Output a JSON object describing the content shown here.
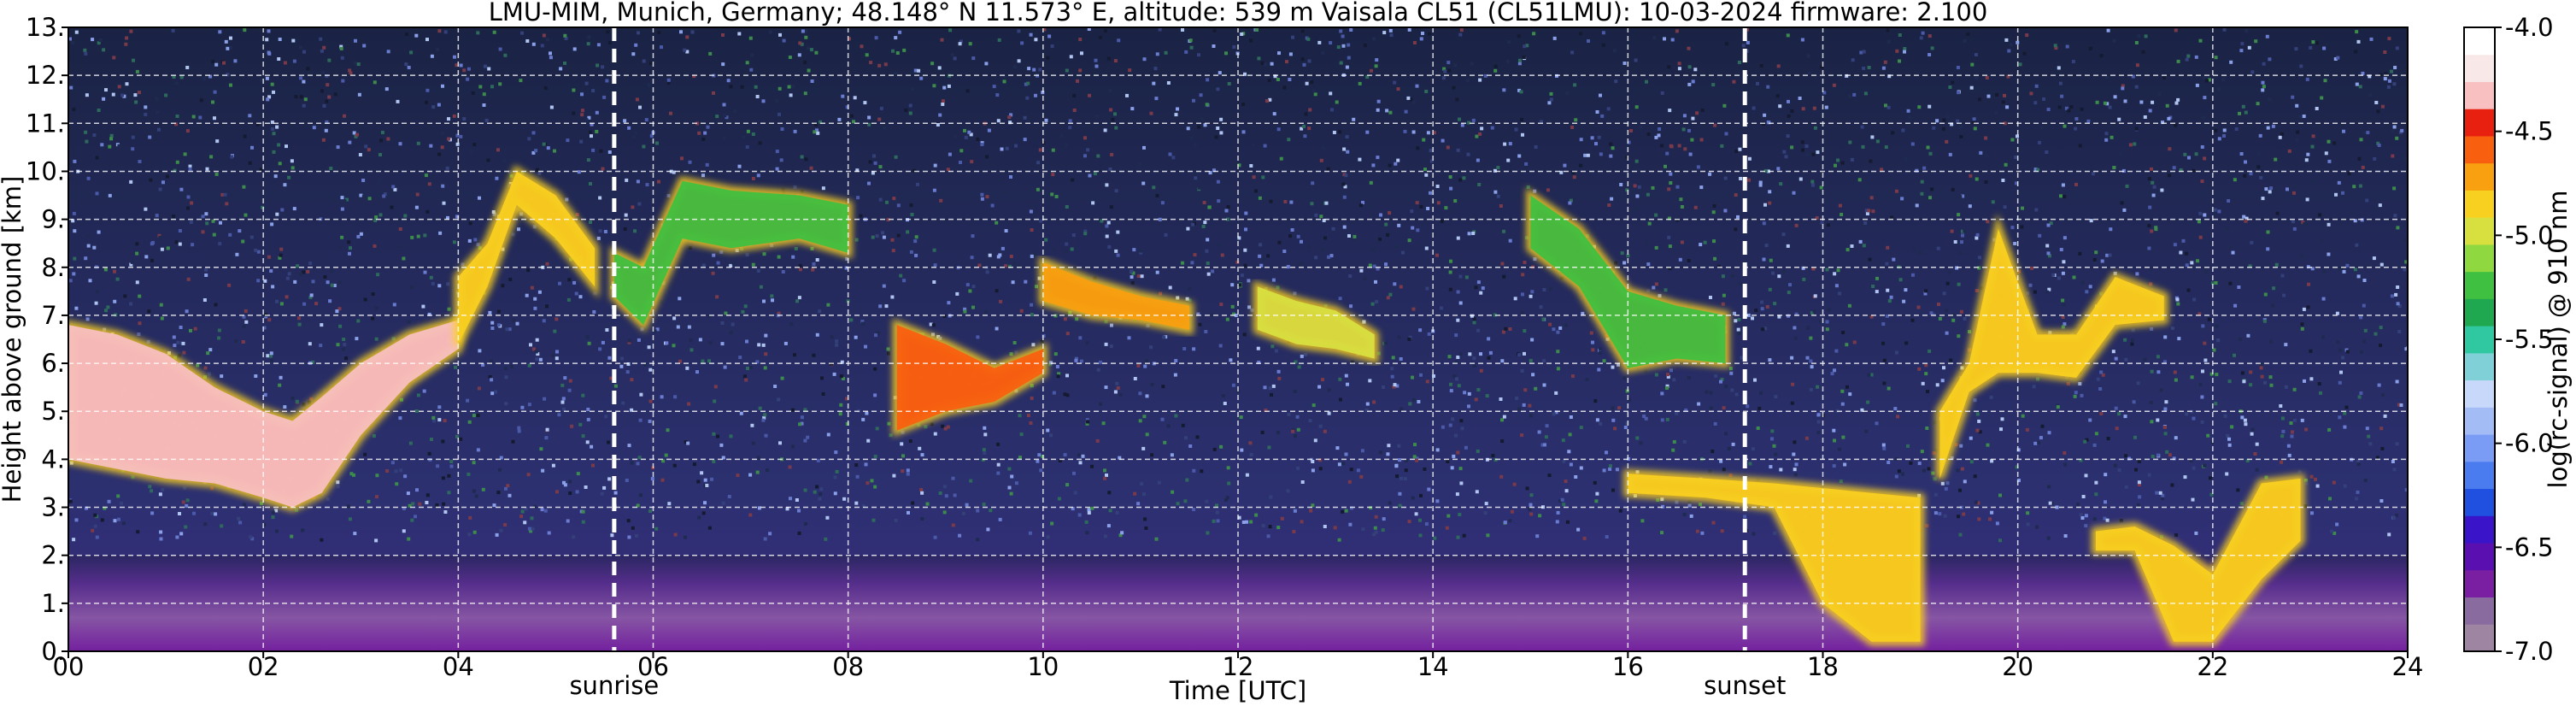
{
  "chart_data": {
    "type": "heatmap",
    "title": "LMU-MIM, Munich, Germany; 48.148° N 11.573° E, altitude: 539 m    Vaisala CL51 (CL51LMU): 10-03-2024    firmware: 2.100",
    "xlabel": "Time [UTC]",
    "ylabel": "Height above ground [km]",
    "xlim": [
      0,
      24
    ],
    "ylim": [
      0,
      13
    ],
    "x_ticks": [
      0,
      2,
      4,
      6,
      8,
      10,
      12,
      14,
      16,
      18,
      20,
      22,
      24
    ],
    "x_tick_labels": [
      "00",
      "02",
      "04",
      "06",
      "08",
      "10",
      "12",
      "14",
      "16",
      "18",
      "20",
      "22",
      "24"
    ],
    "y_ticks": [
      0,
      1,
      2,
      3,
      4,
      5,
      6,
      7,
      8,
      9,
      10,
      11,
      12,
      13
    ],
    "y_tick_labels": [
      "0.",
      "1.",
      "2.",
      "3.",
      "4.",
      "5.",
      "6.",
      "7.",
      "8.",
      "9.",
      "10.",
      "11.",
      "12.",
      "13."
    ],
    "grid": true,
    "colorbar": {
      "label": "log(rc-signal) @ 910 nm",
      "range": [
        -7.0,
        -4.0
      ],
      "ticks": [
        -7.0,
        -6.5,
        -6.0,
        -5.5,
        -5.0,
        -4.5,
        -4.0
      ],
      "tick_labels": [
        "-7.0",
        "-6.5",
        "-6.0",
        "-5.5",
        "-5.0",
        "-4.5",
        "-4.0"
      ],
      "colors": [
        "#9e86a2",
        "#8a6ba0",
        "#7a1fa2",
        "#5a10b0",
        "#3a14c8",
        "#2050e0",
        "#4a7cf0",
        "#7a9cf4",
        "#a4bcf6",
        "#c8d8fa",
        "#80d0d8",
        "#30c8a0",
        "#20a850",
        "#40c040",
        "#90d840",
        "#d8e040",
        "#f8d020",
        "#f8a010",
        "#f86010",
        "#e82010",
        "#f8c0c0",
        "#f8e8e8",
        "#ffffff"
      ]
    },
    "event_markers": [
      {
        "label": "sunrise",
        "x": 5.6
      },
      {
        "label": "sunset",
        "x": 17.2
      }
    ],
    "cloud_layers": [
      {
        "x": [
          0.0,
          0.5,
          1.0,
          1.5,
          2.0,
          2.3,
          2.6,
          3.0,
          3.5,
          4.0
        ],
        "top_km": [
          6.8,
          6.6,
          6.2,
          5.5,
          5.0,
          4.8,
          5.3,
          6.0,
          6.6,
          6.9
        ],
        "base_km": [
          4.0,
          3.8,
          3.6,
          3.5,
          3.2,
          3.0,
          3.3,
          4.5,
          5.6,
          6.3
        ],
        "intensity": -4.3
      },
      {
        "x": [
          4.0,
          4.3,
          4.6,
          5.0,
          5.4
        ],
        "top_km": [
          7.8,
          8.5,
          10.0,
          9.5,
          8.4
        ],
        "base_km": [
          6.4,
          7.6,
          9.3,
          8.6,
          7.6
        ],
        "intensity": -4.8
      },
      {
        "x": [
          5.6,
          5.9,
          6.3,
          6.8,
          7.5,
          8.0
        ],
        "top_km": [
          8.3,
          8.0,
          9.8,
          9.6,
          9.5,
          9.3
        ],
        "base_km": [
          7.4,
          6.8,
          8.6,
          8.4,
          8.6,
          8.3
        ],
        "intensity": -5.3
      },
      {
        "x": [
          8.5,
          9.0,
          9.5,
          10.0
        ],
        "top_km": [
          6.8,
          6.4,
          5.9,
          6.3
        ],
        "base_km": [
          4.6,
          5.0,
          5.2,
          5.8
        ],
        "intensity": -4.6
      },
      {
        "x": [
          10.0,
          10.5,
          11.0,
          11.5
        ],
        "top_km": [
          8.1,
          7.7,
          7.4,
          7.2
        ],
        "base_km": [
          7.3,
          7.0,
          6.9,
          6.7
        ],
        "intensity": -4.7
      },
      {
        "x": [
          12.2,
          12.6,
          13.0,
          13.4
        ],
        "top_km": [
          7.6,
          7.3,
          7.1,
          6.6
        ],
        "base_km": [
          6.7,
          6.4,
          6.3,
          6.1
        ],
        "intensity": -5.0
      },
      {
        "x": [
          15.0,
          15.5,
          16.0,
          16.5,
          17.0
        ],
        "top_km": [
          9.5,
          8.8,
          7.5,
          7.2,
          7.0
        ],
        "base_km": [
          8.4,
          7.6,
          5.9,
          6.1,
          6.0
        ],
        "intensity": -5.2
      },
      {
        "x": [
          16.0,
          16.8,
          17.5,
          18.0,
          18.5,
          19.0
        ],
        "top_km": [
          3.7,
          3.6,
          3.5,
          3.4,
          3.3,
          3.2
        ],
        "base_km": [
          3.3,
          3.2,
          3.0,
          1.0,
          0.2,
          0.2
        ],
        "intensity": -4.9
      },
      {
        "x": [
          19.2,
          19.5,
          19.8,
          20.2,
          20.6,
          21.0,
          21.5
        ],
        "top_km": [
          5.0,
          6.0,
          8.8,
          6.6,
          6.6,
          7.8,
          7.4
        ],
        "base_km": [
          3.6,
          5.4,
          5.8,
          5.8,
          5.7,
          6.8,
          6.9
        ],
        "intensity": -4.8
      },
      {
        "x": [
          20.8,
          21.2,
          21.6,
          22.0,
          22.5,
          22.9
        ],
        "top_km": [
          2.5,
          2.6,
          2.2,
          1.6,
          3.5,
          3.6
        ],
        "base_km": [
          2.1,
          2.1,
          0.2,
          0.2,
          1.5,
          2.3
        ],
        "intensity": -4.9
      }
    ]
  }
}
